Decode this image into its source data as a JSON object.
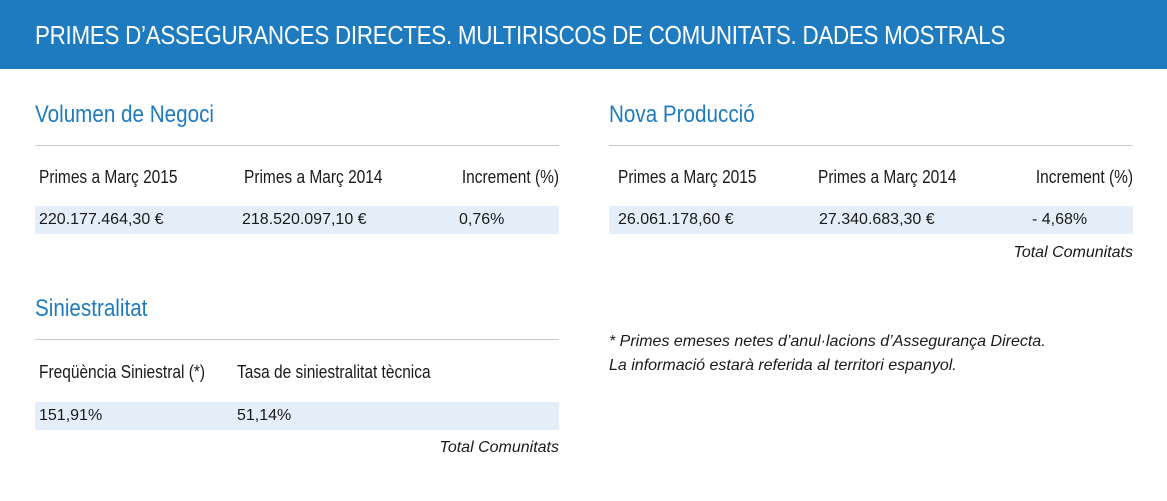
{
  "header": {
    "title": "PRIMES D’ASSEGURANCES DIRECTES. MULTIRISCOS DE COMUNITATS. DADES MOSTRALS"
  },
  "volumen": {
    "title": "Volumen de Negoci",
    "columns": [
      "Primes a Març 2015",
      "Primes a Març 2014",
      "Increment (%)"
    ],
    "values": [
      "220.177.464,30 €",
      "218.520.097,10 €",
      "0,76%"
    ]
  },
  "nova": {
    "title": "Nova Producció",
    "columns": [
      "Primes a Març 2015",
      "Primes a Març 2014",
      "Increment (%)"
    ],
    "values": [
      "26.061.178,60 €",
      "27.340.683,30 €",
      "- 4,68%"
    ],
    "footer": "Total Comunitats"
  },
  "siniestralitat": {
    "title": "Siniestralitat",
    "columns": [
      "Freqüència Siniestral (*)",
      "Tasa de siniestralitat tècnica"
    ],
    "values": [
      "151,91%",
      "51,14%"
    ],
    "footer": "Total Comunitats"
  },
  "note": {
    "line1": "* Primes emeses netes d’anul·lacions d’Assegurança Directa.",
    "line2": "La informació estarà referida al territori espanyol."
  }
}
